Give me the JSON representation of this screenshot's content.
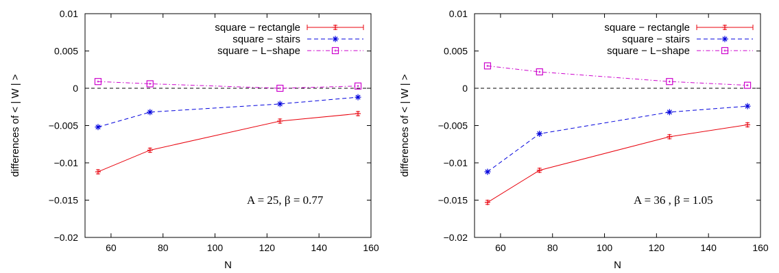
{
  "chart_data": [
    {
      "type": "line",
      "xlabel": "N",
      "ylabel": "differences of  < | W | >",
      "xlim": [
        50,
        160
      ],
      "ylim": [
        -0.02,
        0.01
      ],
      "xticks": [
        60,
        80,
        100,
        120,
        140,
        160
      ],
      "yticks": [
        -0.02,
        -0.015,
        -0.01,
        -0.005,
        0,
        0.005,
        0.01
      ],
      "ytick_labels": [
        "−0.02",
        "−0.015",
        "−0.01",
        "−0.005",
        "0",
        "0.005",
        "0.01"
      ],
      "zero_line": true,
      "legend_position": "top-right",
      "annotation": "A = 25,  β = 0.77",
      "x": [
        55,
        75,
        125,
        155
      ],
      "series": [
        {
          "name": "square − rectangle",
          "marker": "plus-errorbar",
          "dash": "solid",
          "color": "#e8000b",
          "values": [
            -0.0112,
            -0.0083,
            -0.0044,
            -0.0034
          ]
        },
        {
          "name": "square − stairs",
          "marker": "star",
          "dash": "dashed",
          "color": "#0000dd",
          "values": [
            -0.0052,
            -0.0032,
            -0.0021,
            -0.0012
          ]
        },
        {
          "name": "square − L−shape",
          "marker": "box",
          "dash": "dashdot",
          "color": "#cc00cc",
          "values": [
            0.0009,
            0.0006,
            0.0,
            0.0003
          ]
        }
      ]
    },
    {
      "type": "line",
      "xlabel": "N",
      "ylabel": "differences of  < | W | >",
      "xlim": [
        50,
        160
      ],
      "ylim": [
        -0.02,
        0.01
      ],
      "xticks": [
        60,
        80,
        100,
        120,
        140,
        160
      ],
      "yticks": [
        -0.02,
        -0.015,
        -0.01,
        -0.005,
        0,
        0.005,
        0.01
      ],
      "ytick_labels": [
        "−0.02",
        "−0.015",
        "−0.01",
        "−0.005",
        "0",
        "0.005",
        "0.01"
      ],
      "zero_line": true,
      "legend_position": "top-right",
      "annotation": "A = 36 ,  β = 1.05",
      "x": [
        55,
        75,
        125,
        155
      ],
      "series": [
        {
          "name": "square − rectangle",
          "marker": "plus-errorbar",
          "dash": "solid",
          "color": "#e8000b",
          "values": [
            -0.0153,
            -0.011,
            -0.0065,
            -0.0049
          ]
        },
        {
          "name": "square − stairs",
          "marker": "star",
          "dash": "dashed",
          "color": "#0000dd",
          "values": [
            -0.0112,
            -0.0061,
            -0.0032,
            -0.0024
          ]
        },
        {
          "name": "square − L−shape",
          "marker": "box",
          "dash": "dashdot",
          "color": "#cc00cc",
          "values": [
            0.003,
            0.0022,
            0.0009,
            0.0004
          ]
        }
      ]
    }
  ]
}
